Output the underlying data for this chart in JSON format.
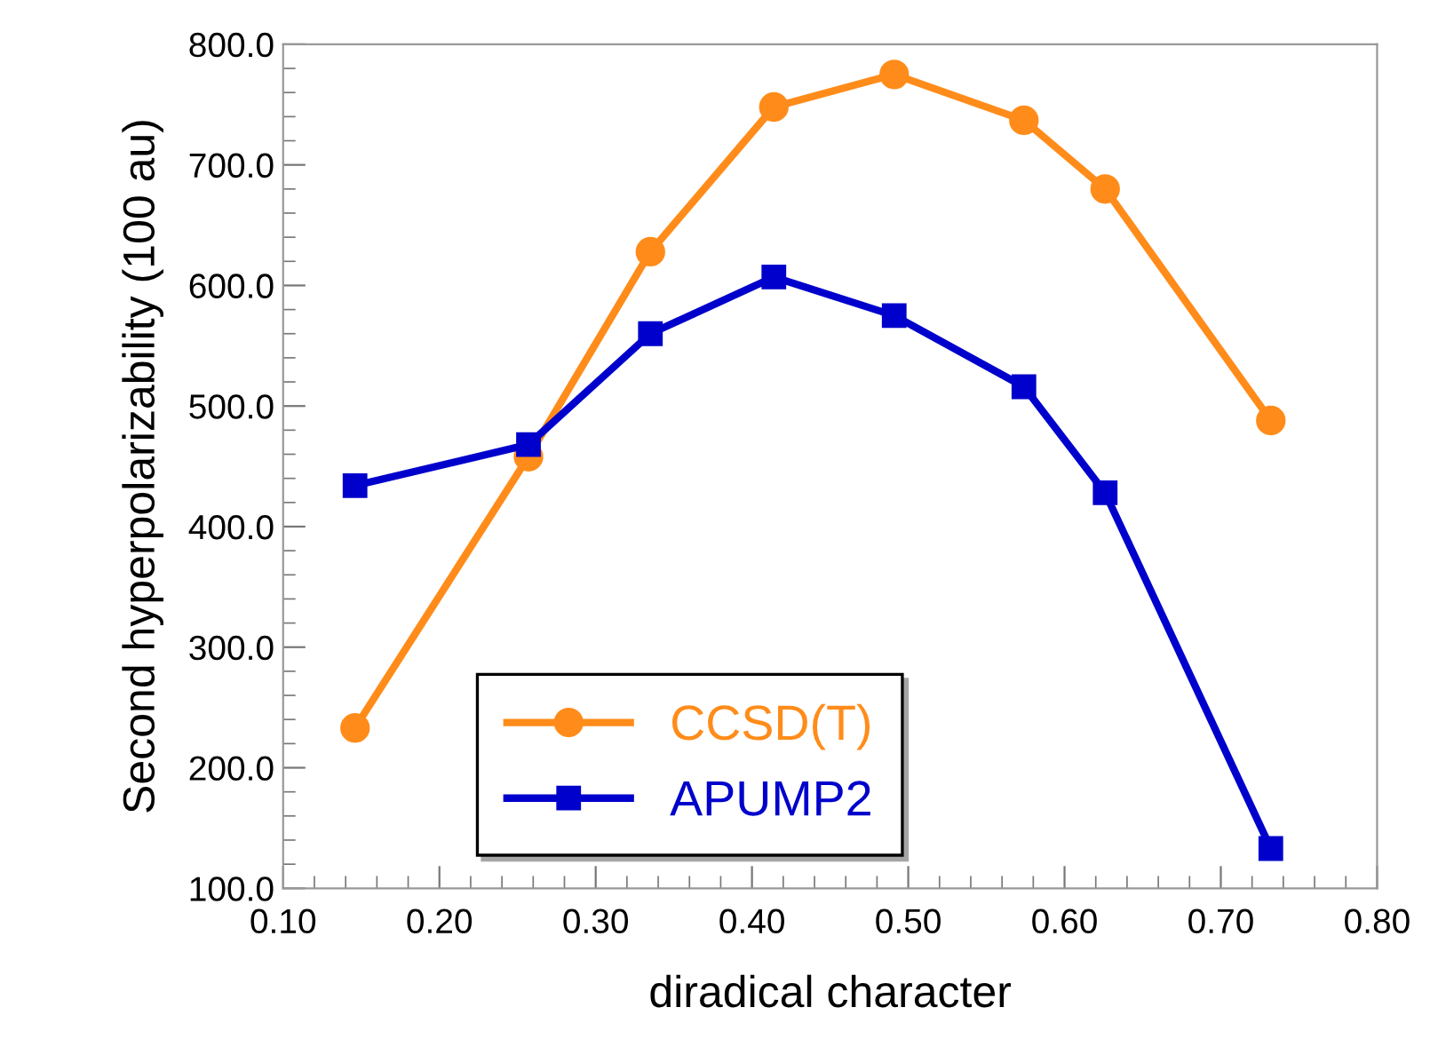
{
  "chart_data": {
    "type": "line",
    "xlabel": "diradical character",
    "ylabel": "Second hyperpolarizability (100 au)",
    "series": [
      {
        "name": "CCSD(T)",
        "color": "#ff8c1a",
        "marker": "circle",
        "x": [
          0.146,
          0.257,
          0.335,
          0.414,
          0.491,
          0.574,
          0.626,
          0.732
        ],
        "values": [
          233,
          458,
          628,
          748,
          775,
          737,
          680,
          488
        ]
      },
      {
        "name": "APUMP2",
        "color": "#0000cc",
        "marker": "square",
        "x": [
          0.146,
          0.257,
          0.335,
          0.414,
          0.491,
          0.574,
          0.626,
          0.732
        ],
        "values": [
          434,
          468,
          560,
          607,
          575,
          516,
          428,
          133
        ]
      }
    ],
    "xlim": [
      0.1,
      0.8
    ],
    "xticks": [
      {
        "value": 0.1,
        "label": "0.10"
      },
      {
        "value": 0.2,
        "label": "0.20"
      },
      {
        "value": 0.3,
        "label": "0.30"
      },
      {
        "value": 0.4,
        "label": "0.40"
      },
      {
        "value": 0.5,
        "label": "0.50"
      },
      {
        "value": 0.6,
        "label": "0.60"
      },
      {
        "value": 0.7,
        "label": "0.70"
      },
      {
        "value": 0.8,
        "label": "0.80"
      }
    ],
    "ylim": [
      100,
      800
    ],
    "yticks": [
      {
        "value": 100,
        "label": "100.0"
      },
      {
        "value": 200,
        "label": "200.0"
      },
      {
        "value": 300,
        "label": "300.0"
      },
      {
        "value": 400,
        "label": "400.0"
      },
      {
        "value": 500,
        "label": "500.0"
      },
      {
        "value": 600,
        "label": "600.0"
      },
      {
        "value": 700,
        "label": "700.0"
      },
      {
        "value": 800,
        "label": "800.0"
      }
    ],
    "grid": false,
    "legend": "bottom left",
    "line_style": "solid"
  }
}
